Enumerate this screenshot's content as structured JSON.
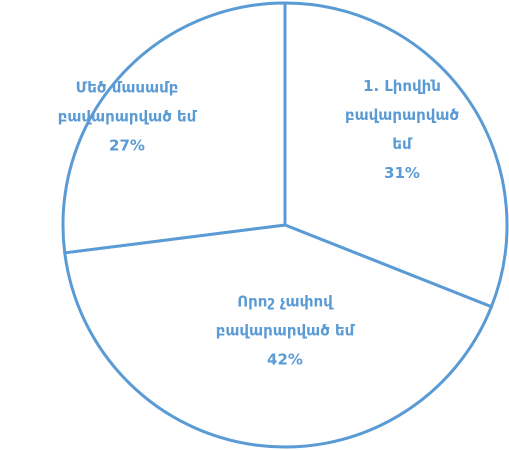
{
  "chart_data": {
    "type": "pie",
    "categories": [
      "1. Լիովին բավարարված եմ",
      "Որոշ չափով բավարարված եմ",
      "Մեծ մասամբ բավարարված եմ"
    ],
    "values": [
      31,
      42,
      27
    ],
    "value_labels": [
      "31%",
      "42%",
      "27%"
    ],
    "color": "#5b9bd5",
    "fill": "#ffffff"
  }
}
